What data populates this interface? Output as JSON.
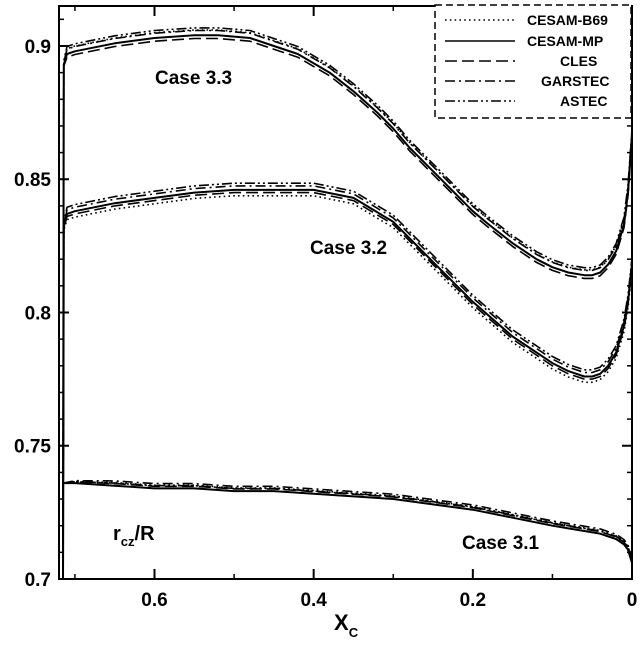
{
  "chart_data": {
    "type": "line",
    "xlabel": "X",
    "xlabel_sub": "C",
    "ylabel": "r",
    "ylabel_sub": "cz",
    "ylabel_suffix": "/R",
    "xlim": [
      0.72,
      0.0
    ],
    "ylim": [
      0.7,
      0.915
    ],
    "x_ticks": [
      0.6,
      0.4,
      0.2,
      0
    ],
    "x_tick_labels": [
      "0.6",
      "0.4",
      "0.2",
      "0"
    ],
    "y_ticks": [
      0.7,
      0.75,
      0.8,
      0.85,
      0.9
    ],
    "y_tick_labels": [
      "0.7",
      "0.75",
      "0.8",
      "0.85",
      "0.9"
    ],
    "grid": false,
    "legend": {
      "placement": "top-right",
      "entries": [
        {
          "label": "CESAM-B69",
          "dash": "dotted"
        },
        {
          "label": "CESAM-MP",
          "dash": "solid"
        },
        {
          "label": "CLES",
          "dash": "dashed"
        },
        {
          "label": "GARSTEC",
          "dash": "dash-dot"
        },
        {
          "label": "ASTEC",
          "dash": "dash-dot-dot"
        }
      ]
    },
    "annotations": [
      {
        "text": "Case 3.3",
        "x": 0.57,
        "y": 0.883
      },
      {
        "text": "Case 3.2",
        "x": 0.37,
        "y": 0.822
      },
      {
        "text": "Case 3.1",
        "x": 0.15,
        "y": 0.705
      }
    ],
    "cases": [
      {
        "name": "Case 3.3",
        "x": [
          0.715,
          0.714,
          0.71,
          0.7,
          0.65,
          0.6,
          0.55,
          0.52,
          0.48,
          0.45,
          0.42,
          0.38,
          0.35,
          0.32,
          0.3,
          0.28,
          0.25,
          0.22,
          0.2,
          0.18,
          0.15,
          0.12,
          0.1,
          0.08,
          0.06,
          0.05,
          0.04,
          0.03,
          0.02,
          0.01,
          0.005,
          0.0
        ],
        "y": [
          0.7,
          0.893,
          0.897,
          0.898,
          0.901,
          0.903,
          0.904,
          0.904,
          0.903,
          0.9,
          0.897,
          0.89,
          0.883,
          0.875,
          0.869,
          0.862,
          0.853,
          0.844,
          0.838,
          0.833,
          0.826,
          0.82,
          0.817,
          0.815,
          0.814,
          0.814,
          0.815,
          0.818,
          0.823,
          0.833,
          0.845,
          0.866
        ],
        "series_offsets": [
          {
            "name": "CESAM-B69",
            "dy": 0.002
          },
          {
            "name": "CESAM-MP",
            "dy": 0.0
          },
          {
            "name": "CLES",
            "dy": -0.0012
          },
          {
            "name": "GARSTEC",
            "dy": 0.0018
          },
          {
            "name": "ASTEC",
            "dy": 0.0028
          }
        ]
      },
      {
        "name": "Case 3.2",
        "x": [
          0.715,
          0.714,
          0.71,
          0.7,
          0.65,
          0.6,
          0.55,
          0.5,
          0.45,
          0.4,
          0.35,
          0.3,
          0.25,
          0.2,
          0.15,
          0.1,
          0.08,
          0.06,
          0.05,
          0.04,
          0.03,
          0.02,
          0.01,
          0.005,
          0.0
        ],
        "y": [
          0.7,
          0.832,
          0.837,
          0.838,
          0.841,
          0.843,
          0.845,
          0.846,
          0.846,
          0.846,
          0.843,
          0.834,
          0.819,
          0.804,
          0.791,
          0.781,
          0.778,
          0.776,
          0.776,
          0.777,
          0.78,
          0.785,
          0.795,
          0.804,
          0.818
        ],
        "series_offsets": [
          {
            "name": "CESAM-B69",
            "dy": -0.0022
          },
          {
            "name": "CESAM-MP",
            "dy": 0.0
          },
          {
            "name": "CLES",
            "dy": -0.001
          },
          {
            "name": "GARSTEC",
            "dy": 0.0015
          },
          {
            "name": "ASTEC",
            "dy": 0.0025
          }
        ]
      },
      {
        "name": "Case 3.1",
        "x": [
          0.715,
          0.7,
          0.65,
          0.6,
          0.55,
          0.5,
          0.45,
          0.4,
          0.35,
          0.3,
          0.25,
          0.2,
          0.15,
          0.1,
          0.08,
          0.06,
          0.04,
          0.03,
          0.02,
          0.01,
          0.005,
          0.0
        ],
        "y": [
          0.736,
          0.736,
          0.735,
          0.734,
          0.734,
          0.733,
          0.733,
          0.732,
          0.731,
          0.73,
          0.728,
          0.726,
          0.723,
          0.72,
          0.719,
          0.718,
          0.717,
          0.716,
          0.715,
          0.713,
          0.711,
          0.706
        ],
        "series_offsets": [
          {
            "name": "CESAM-B69",
            "dy": 0.0012
          },
          {
            "name": "CESAM-MP",
            "dy": 0.0
          },
          {
            "name": "CLES",
            "dy": 0.0008
          },
          {
            "name": "GARSTEC",
            "dy": 0.0018
          },
          {
            "name": "ASTEC",
            "dy": 0.001
          }
        ]
      }
    ]
  }
}
